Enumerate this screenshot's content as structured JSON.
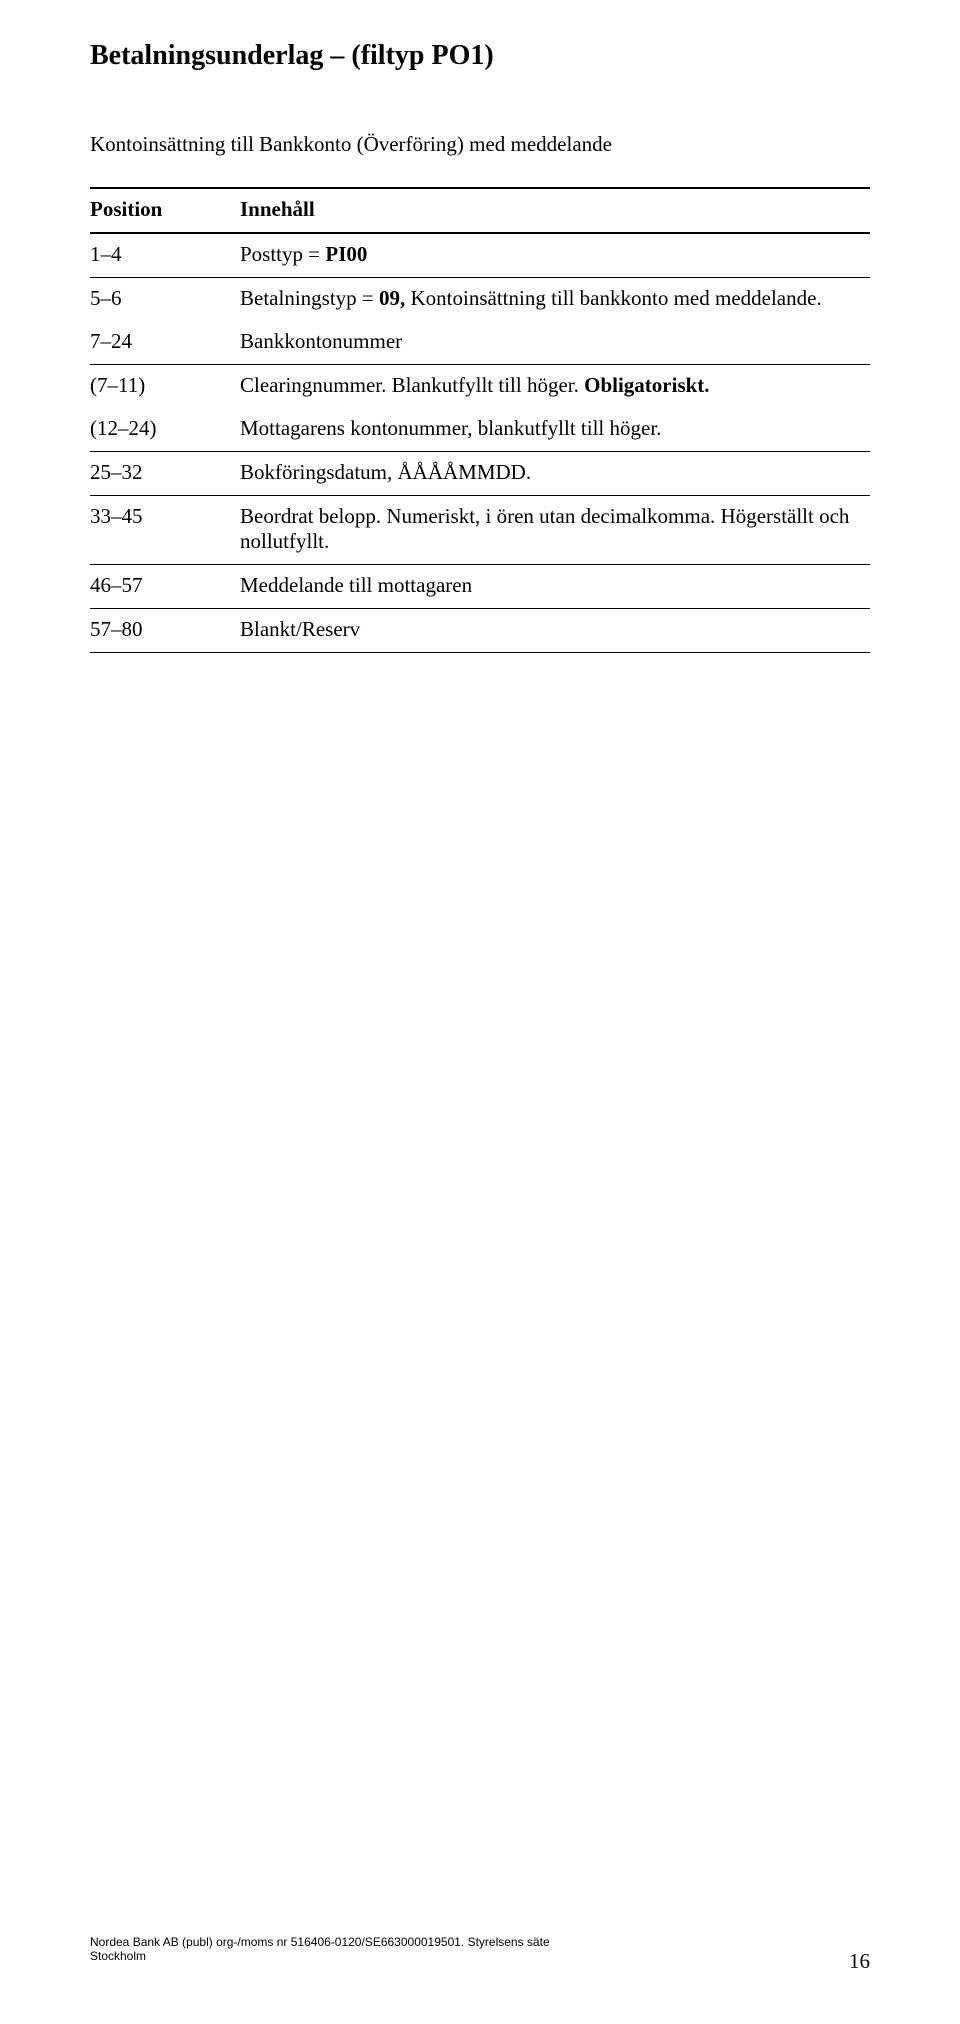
{
  "title": "Betalningsunderlag – (filtyp PO1)",
  "subtitle": "Kontoinsättning till Bankkonto (Överföring) med meddelande",
  "headers": {
    "position": "Position",
    "content": "Innehåll"
  },
  "rows": [
    {
      "pos": "1–4",
      "desc_html": "Posttyp = <b>PI00</b>"
    },
    {
      "pos": "5–6",
      "desc_html": "Betalningstyp = <b>09,</b> Kontoinsättning till bankkonto med meddelande."
    },
    {
      "pos": "7–24",
      "desc_html": "Bankkontonummer"
    },
    {
      "pos": "(7–11)",
      "desc_html": "Clearingnummer. Blankutfyllt till höger. <b>Obligatoriskt.</b>"
    },
    {
      "pos": "(12–24)",
      "desc_html": "Mottagarens kontonummer, blankutfyllt till höger."
    },
    {
      "pos": "25–32",
      "desc_html": "Bokföringsdatum, ÅÅÅÅMMDD."
    },
    {
      "pos": "33–45",
      "desc_html": "Beordrat belopp. Numeriskt, i ören utan decimalkomma. Högerställt och nollutfyllt."
    },
    {
      "pos": "46–57",
      "desc_html": "Meddelande till mottagaren"
    },
    {
      "pos": "57–80",
      "desc_html": "Blankt/Reserv"
    }
  ],
  "footer": {
    "line1": "Nordea Bank AB (publ) org-/moms nr 516406-0120/SE663000019501. Styrelsens säte",
    "line2": "Stockholm",
    "page_number": "16"
  }
}
